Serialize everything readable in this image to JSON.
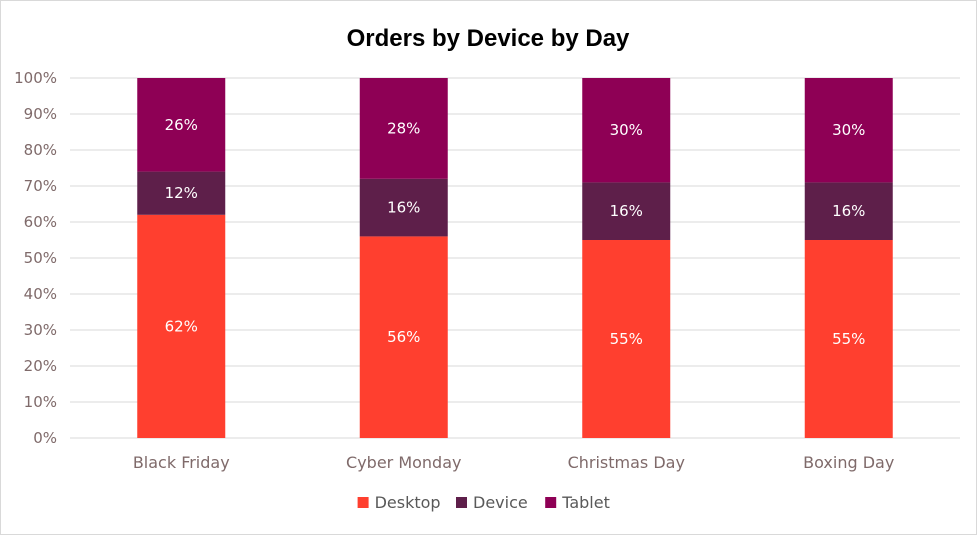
{
  "chart_data": {
    "type": "bar",
    "stacked": true,
    "title": "Orders by Device by Day",
    "xlabel": "",
    "ylabel": "",
    "categories": [
      "Black Friday",
      "Cyber Monday",
      "Christmas Day",
      "Boxing Day"
    ],
    "series": [
      {
        "name": "Desktop",
        "values": [
          62,
          56,
          55,
          55
        ],
        "labels": [
          "62%",
          "56%",
          "55%",
          "55%"
        ],
        "color": "#ff3f2f"
      },
      {
        "name": "Device",
        "values": [
          12,
          16,
          16,
          16
        ],
        "labels": [
          "12%",
          "16%",
          "16%",
          "16%"
        ],
        "color": "#5e1f4a"
      },
      {
        "name": "Tablet",
        "values": [
          26,
          28,
          30,
          30
        ],
        "labels": [
          "26%",
          "28%",
          "30%",
          "30%"
        ],
        "color": "#8e0055"
      }
    ],
    "ylim": [
      0,
      100
    ],
    "yticks": [
      0,
      10,
      20,
      30,
      40,
      50,
      60,
      70,
      80,
      90,
      100
    ],
    "ytick_labels": [
      "0%",
      "10%",
      "20%",
      "30%",
      "40%",
      "50%",
      "60%",
      "70%",
      "80%",
      "90%",
      "100%"
    ],
    "grid": true,
    "legend_position": "bottom"
  }
}
